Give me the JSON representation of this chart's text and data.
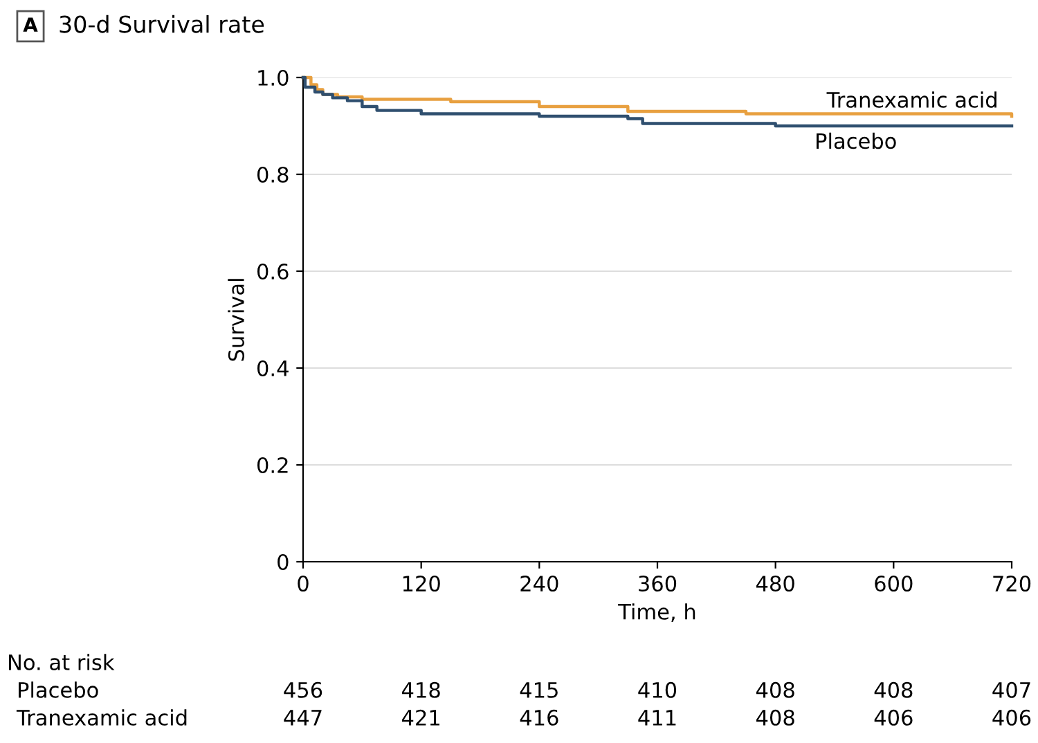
{
  "chart_data": {
    "type": "step",
    "title": "30-d Survival rate",
    "xlabel": "Time, h",
    "ylabel": "Survival",
    "xlim": [
      0,
      720
    ],
    "ylim": [
      0,
      1.0
    ],
    "xticks": [
      0,
      120,
      240,
      360,
      480,
      600,
      720
    ],
    "yticks": [
      0,
      0.2,
      0.4,
      0.6,
      0.8,
      {
        "value": 1.0,
        "label": "1.0"
      }
    ],
    "grid": "y",
    "series": [
      {
        "name": "Placebo",
        "color": "#2f4f6f",
        "x": [
          0,
          2,
          12,
          20,
          30,
          45,
          60,
          75,
          120,
          240,
          330,
          345,
          480,
          720
        ],
        "values": [
          1.0,
          0.98,
          0.97,
          0.965,
          0.958,
          0.952,
          0.94,
          0.932,
          0.925,
          0.92,
          0.915,
          0.905,
          0.9,
          0.9
        ]
      },
      {
        "name": "Tranexamic acid",
        "color": "#e8a040",
        "x": [
          0,
          8,
          14,
          20,
          35,
          60,
          150,
          240,
          330,
          450,
          720
        ],
        "values": [
          1.0,
          0.985,
          0.975,
          0.965,
          0.96,
          0.955,
          0.95,
          0.94,
          0.93,
          0.925,
          0.92
        ]
      }
    ],
    "annotations": [
      "A",
      "No. at risk",
      "Placebo",
      "456",
      "418",
      "415",
      "410",
      "408",
      "408",
      "407",
      "Tranexamic acid",
      "447",
      "421",
      "416",
      "411",
      "408",
      "406",
      "406"
    ]
  }
}
